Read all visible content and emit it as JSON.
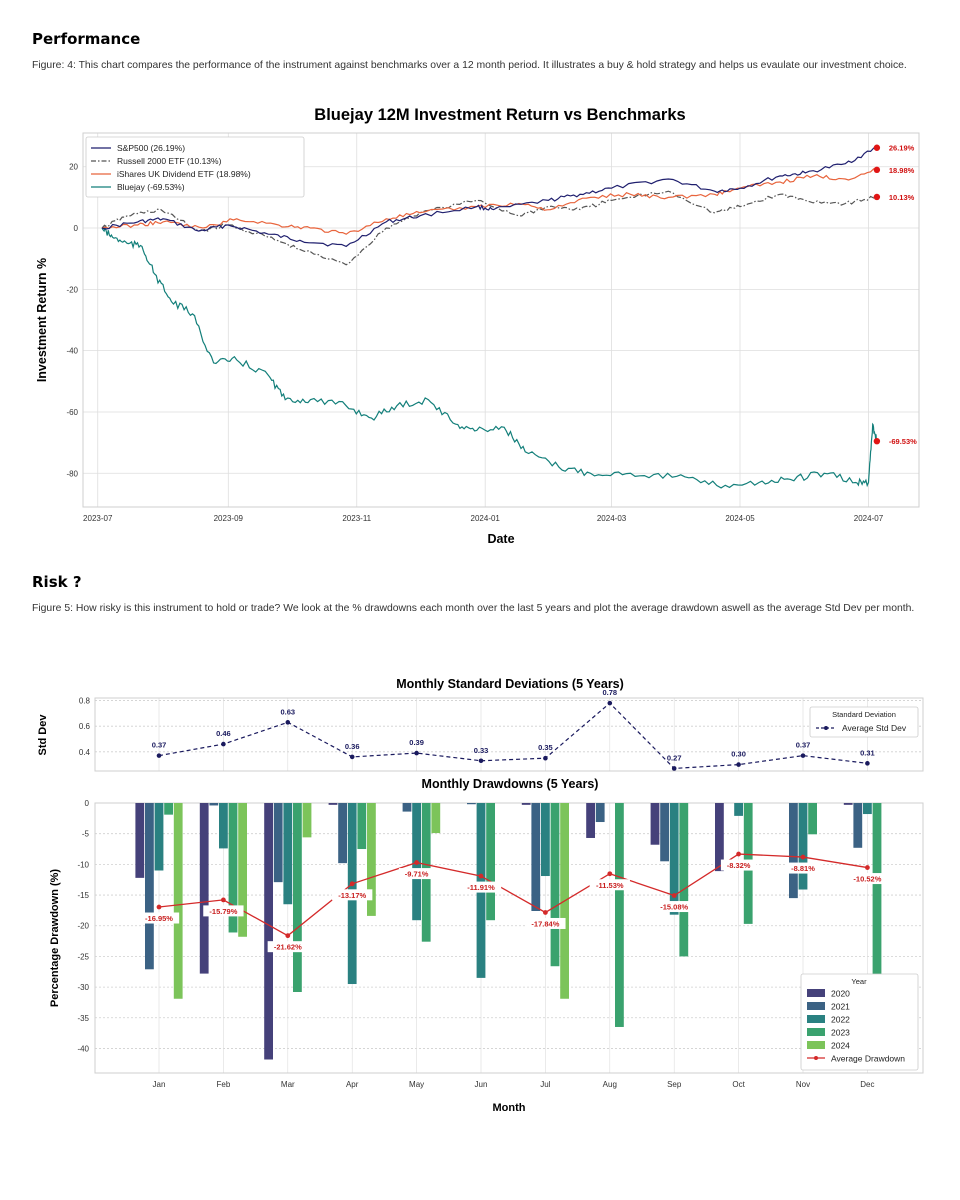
{
  "performance": {
    "heading": "Performance",
    "caption": "Figure: 4: This chart compares the performance of the instrument against benchmarks over a 12 month period.  It illustrates a buy & hold strategy and helps us evaulate our investment choice."
  },
  "risk": {
    "heading": "Risk ?",
    "caption": "Figure 5: How risky is this instrument to hold or trade? We look at the % drawdowns each month over the last 5 years and plot the average drawdown aswell as the average Std Dev per month."
  },
  "chart_data": [
    {
      "type": "line",
      "title": "Bluejay 12M Investment Return vs Benchmarks",
      "xlabel": "Date",
      "ylabel": "Investment Return %",
      "x_range": [
        "2023-06-24",
        "2024-07-25"
      ],
      "xticks": [
        "2023-07",
        "2023-09",
        "2023-11",
        "2024-01",
        "2024-03",
        "2024-05",
        "2024-07"
      ],
      "ylim": [
        -91,
        31
      ],
      "yticks": [
        20,
        0,
        -20,
        -40,
        -60,
        -80
      ],
      "grid": true,
      "legend_position": "top-left",
      "series": [
        {
          "name": "S&P500 (26.19%)",
          "color": "#1f1f6e",
          "style": "solid",
          "end_label": "26.19%",
          "points": [
            [
              "2023-07-03",
              0
            ],
            [
              "2023-07-20",
              2
            ],
            [
              "2023-08-01",
              3
            ],
            [
              "2023-08-18",
              -1
            ],
            [
              "2023-09-01",
              1
            ],
            [
              "2023-09-20",
              -2
            ],
            [
              "2023-10-05",
              -4
            ],
            [
              "2023-10-27",
              -6
            ],
            [
              "2023-11-15",
              2
            ],
            [
              "2023-12-01",
              4
            ],
            [
              "2023-12-28",
              7
            ],
            [
              "2024-01-05",
              6
            ],
            [
              "2024-01-31",
              9
            ],
            [
              "2024-02-15",
              11
            ],
            [
              "2024-03-01",
              13
            ],
            [
              "2024-03-28",
              16
            ],
            [
              "2024-04-19",
              12
            ],
            [
              "2024-05-01",
              13
            ],
            [
              "2024-05-20",
              17
            ],
            [
              "2024-06-01",
              18
            ],
            [
              "2024-06-20",
              21
            ],
            [
              "2024-07-05",
              26.19
            ]
          ]
        },
        {
          "name": "Russell 2000 ETF (10.13%)",
          "color": "#555555",
          "style": "dashdot",
          "end_label": "10.13%",
          "points": [
            [
              "2023-07-03",
              0
            ],
            [
              "2023-07-15",
              4
            ],
            [
              "2023-07-31",
              6
            ],
            [
              "2023-08-18",
              -1
            ],
            [
              "2023-09-01",
              1
            ],
            [
              "2023-09-20",
              -3
            ],
            [
              "2023-10-05",
              -7
            ],
            [
              "2023-10-27",
              -12
            ],
            [
              "2023-11-15",
              0
            ],
            [
              "2023-12-01",
              5
            ],
            [
              "2023-12-28",
              9
            ],
            [
              "2024-01-17",
              4
            ],
            [
              "2024-01-31",
              7
            ],
            [
              "2024-02-15",
              6
            ],
            [
              "2024-03-01",
              9
            ],
            [
              "2024-03-28",
              12
            ],
            [
              "2024-04-19",
              5
            ],
            [
              "2024-05-01",
              7
            ],
            [
              "2024-05-20",
              11
            ],
            [
              "2024-06-01",
              9
            ],
            [
              "2024-06-20",
              8
            ],
            [
              "2024-07-05",
              10.13
            ]
          ]
        },
        {
          "name": "iShares UK Dividend ETF (18.98%)",
          "color": "#e8643c",
          "style": "solid",
          "end_label": "18.98%",
          "points": [
            [
              "2023-07-03",
              0
            ],
            [
              "2023-07-20",
              1
            ],
            [
              "2023-08-01",
              2
            ],
            [
              "2023-08-20",
              0
            ],
            [
              "2023-09-05",
              3
            ],
            [
              "2023-09-25",
              1
            ],
            [
              "2023-10-10",
              0
            ],
            [
              "2023-10-27",
              -2
            ],
            [
              "2023-11-15",
              3
            ],
            [
              "2023-12-01",
              5
            ],
            [
              "2023-12-28",
              7
            ],
            [
              "2024-01-17",
              8
            ],
            [
              "2024-02-01",
              6
            ],
            [
              "2024-02-20",
              10
            ],
            [
              "2024-03-10",
              11
            ],
            [
              "2024-03-28",
              10
            ],
            [
              "2024-04-19",
              11
            ],
            [
              "2024-05-01",
              13
            ],
            [
              "2024-05-20",
              15
            ],
            [
              "2024-06-05",
              17
            ],
            [
              "2024-06-20",
              16
            ],
            [
              "2024-07-05",
              18.98
            ]
          ]
        },
        {
          "name": "Bluejay (-69.53%)",
          "color": "#137f7a",
          "style": "solid",
          "end_label": "-69.53%",
          "points": [
            [
              "2023-07-03",
              0
            ],
            [
              "2023-07-08",
              -3
            ],
            [
              "2023-07-15",
              -5
            ],
            [
              "2023-07-22",
              -6
            ],
            [
              "2023-07-28",
              -15
            ],
            [
              "2023-08-05",
              -24
            ],
            [
              "2023-08-15",
              -28
            ],
            [
              "2023-08-25",
              -44
            ],
            [
              "2023-09-05",
              -43
            ],
            [
              "2023-09-20",
              -48
            ],
            [
              "2023-09-28",
              -56
            ],
            [
              "2023-10-10",
              -56
            ],
            [
              "2023-10-27",
              -58
            ],
            [
              "2023-11-08",
              -62
            ],
            [
              "2023-11-20",
              -58
            ],
            [
              "2023-12-05",
              -56
            ],
            [
              "2023-12-18",
              -64
            ],
            [
              "2023-12-28",
              -66
            ],
            [
              "2024-01-10",
              -65
            ],
            [
              "2024-01-20",
              -73
            ],
            [
              "2024-02-05",
              -78
            ],
            [
              "2024-02-20",
              -80
            ],
            [
              "2024-03-10",
              -80
            ],
            [
              "2024-04-01",
              -81
            ],
            [
              "2024-04-20",
              -84
            ],
            [
              "2024-05-10",
              -83
            ],
            [
              "2024-05-25",
              -82
            ],
            [
              "2024-06-10",
              -80
            ],
            [
              "2024-06-25",
              -83
            ],
            [
              "2024-07-01",
              -83
            ],
            [
              "2024-07-03",
              -64
            ],
            [
              "2024-07-05",
              -69.53
            ]
          ]
        }
      ]
    },
    {
      "type": "line",
      "title": "Monthly Standard Deviations (5 Years)",
      "ylabel": "Std Dev",
      "categories": [
        "Jan",
        "Feb",
        "Mar",
        "Apr",
        "May",
        "Jun",
        "Jul",
        "Aug",
        "Sep",
        "Oct",
        "Nov",
        "Dec"
      ],
      "ylim": [
        0.25,
        0.82
      ],
      "yticks": [
        0.8,
        0.6,
        0.4
      ],
      "legend_title": "Standard Deviation",
      "legend_position": "top-right",
      "series": [
        {
          "name": "Average Std Dev",
          "color": "#1a1a5e",
          "style": "dashed",
          "values": [
            0.37,
            0.46,
            0.63,
            0.36,
            0.39,
            0.33,
            0.35,
            0.78,
            0.27,
            0.3,
            0.37,
            0.31
          ],
          "labels": [
            "0.37",
            "0.46",
            "0.63",
            "0.36",
            "0.39",
            "0.33",
            "0.35",
            "0.78",
            "0.27",
            "0.30",
            "0.37",
            "0.31"
          ]
        }
      ]
    },
    {
      "type": "bar",
      "title": "Monthly Drawdowns (5 Years)",
      "xlabel": "Month",
      "ylabel": "Percentage Drawdown (%)",
      "categories": [
        "Jan",
        "Feb",
        "Mar",
        "Apr",
        "May",
        "Jun",
        "Jul",
        "Aug",
        "Sep",
        "Oct",
        "Nov",
        "Dec"
      ],
      "ylim": [
        -44,
        0
      ],
      "yticks": [
        0,
        -5,
        -10,
        -15,
        -20,
        -25,
        -30,
        -35,
        -40
      ],
      "legend_title": "Year",
      "legend_position": "bottom-right",
      "series": [
        {
          "name": "2020",
          "color": "#45417a",
          "values": [
            -12.2,
            -27.8,
            -41.8,
            -0.3,
            0,
            0,
            -0.3,
            -5.7,
            -6.8,
            -11.1,
            0,
            -0.3
          ]
        },
        {
          "name": "2021",
          "color": "#3b6284",
          "values": [
            -27.1,
            -0.4,
            -12.9,
            -9.8,
            -1.4,
            -0.2,
            -17.6,
            -3.1,
            -9.5,
            0,
            -15.5,
            -7.3
          ]
        },
        {
          "name": "2022",
          "color": "#2a8181",
          "values": [
            -11.0,
            -7.4,
            -16.5,
            -29.5,
            -19.1,
            -28.5,
            -11.9,
            0,
            -18.2,
            -2.1,
            -14.1,
            -1.8
          ]
        },
        {
          "name": "2023",
          "color": "#3aa26e",
          "values": [
            -1.9,
            -21.1,
            -30.8,
            -7.5,
            -22.6,
            -19.1,
            -26.6,
            -36.5,
            -25.0,
            -19.7,
            -5.1,
            -32.3
          ]
        },
        {
          "name": "2024",
          "color": "#7cc45a",
          "values": [
            -31.9,
            -21.8,
            -5.6,
            -18.4,
            -4.9,
            0,
            -31.9,
            0,
            0,
            0,
            0,
            0
          ]
        },
        {
          "name": "Average Drawdown",
          "color": "#d42a2a",
          "type": "line",
          "values": [
            -16.95,
            -15.79,
            -21.62,
            -13.17,
            -9.71,
            -11.91,
            -17.84,
            -11.53,
            -15.08,
            -8.32,
            -8.81,
            -10.52
          ],
          "labels": [
            "-16.95%",
            "-15.79%",
            "-21.62%",
            "-13.17%",
            "-9.71%",
            "-11.91%",
            "-17.84%",
            "-11.53%",
            "-15.08%",
            "-8.32%",
            "-8.81%",
            "-10.52%"
          ]
        }
      ]
    }
  ]
}
